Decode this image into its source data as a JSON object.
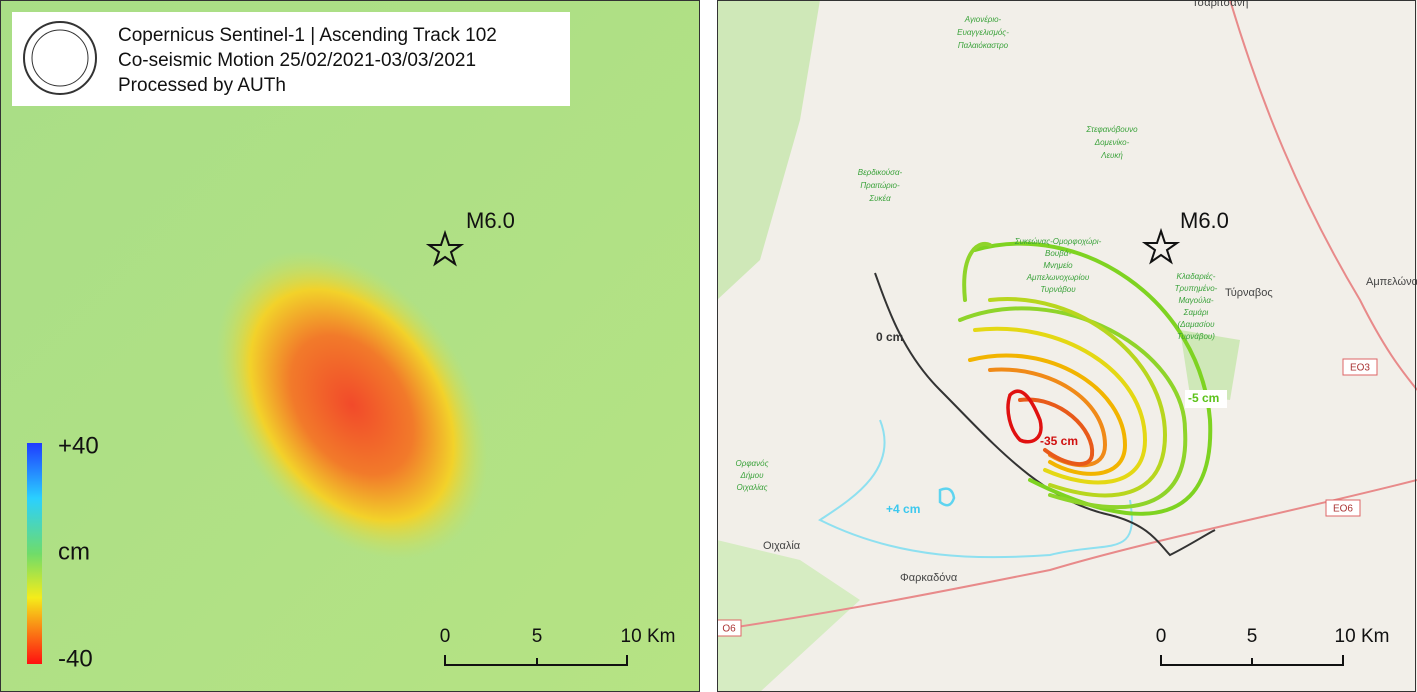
{
  "left_panel": {
    "title_lines": [
      "Copernicus Sentinel-1 | Ascending Track 102",
      "Co-seismic Motion 25/02/2021-03/03/2021",
      "Processed by AUTh"
    ],
    "epicenter_label": "M6.0",
    "legend": {
      "max_label": "+40",
      "unit_label": "cm",
      "min_label": "-40"
    },
    "scale_bar": [
      "0",
      "5",
      "10 Km"
    ]
  },
  "right_panel": {
    "epicenter_label": "M6.0",
    "contour_labels": [
      "0 cm",
      "-5 cm",
      "-35 cm",
      "+4 cm"
    ],
    "town_labels": [
      "Τύρναβος",
      "Οιχαλία",
      "Αμπελώνας",
      "Τσαριτσάνη",
      "Φαρκαδόνα"
    ],
    "area_labels": [
      [
        "Αγιονέριο-",
        "Ευαγγελισμός-",
        "Παλαιόκαστρο"
      ],
      [
        "Στεφανόβουνο",
        "Δομενίκο-",
        "Λευκή"
      ],
      [
        "Βερδικούσα-",
        "Πραιτώριο-",
        "Συκέα"
      ],
      [
        "Ορφανός",
        "Δήμου",
        "Οιχαλίας"
      ],
      [
        "Κλαδαριές-",
        "Τρυπημένο-",
        "Μαγούλα-",
        "Σαμάρι",
        "(Δαμασίου",
        "Τυρνάβου)"
      ],
      [
        "Συκεώνας-Ομορφοχώρι-",
        "Βουβά-",
        "Μνημείο",
        "Αμπελωνοχωρίου",
        "Τυρνάβου"
      ]
    ],
    "road_labels": [
      "ΕΟ3",
      "ΕΟ6",
      "Ο6"
    ],
    "scale_bar": [
      "0",
      "5",
      "10 Km"
    ]
  }
}
